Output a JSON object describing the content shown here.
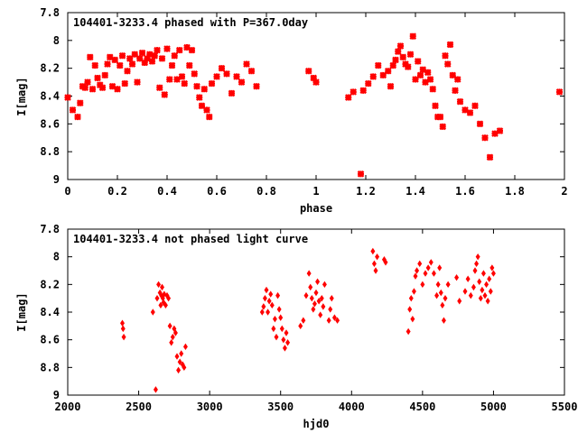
{
  "chart_data": [
    {
      "type": "scatter",
      "title": "104401-3233.4 phased with P=367.0day",
      "xlabel": "phase",
      "ylabel": "I[mag]",
      "xlim": [
        0,
        2
      ],
      "ylim": [
        9,
        7.8
      ],
      "y_inverted": true,
      "xticks": [
        "0",
        "0.2",
        "0.4",
        "0.6",
        "0.8",
        "1",
        "1.2",
        "1.4",
        "1.6",
        "1.8",
        "2"
      ],
      "xtick_values": [
        0,
        0.2,
        0.4,
        0.6,
        0.8,
        1.0,
        1.2,
        1.4,
        1.6,
        1.8,
        2.0
      ],
      "yticks": [
        "7.8",
        "8",
        "8.2",
        "8.4",
        "8.6",
        "8.8",
        "9"
      ],
      "ytick_values": [
        7.8,
        8.0,
        8.2,
        8.4,
        8.6,
        8.8,
        9.0
      ],
      "marker_color": "#ff0000",
      "marker": "star",
      "series": [
        {
          "x": [
            0.0,
            0.02,
            0.04,
            0.05,
            0.06,
            0.07,
            0.08,
            0.09,
            0.1,
            0.11,
            0.12,
            0.13,
            0.14,
            0.15,
            0.16,
            0.17,
            0.18,
            0.19,
            0.2,
            0.21,
            0.22,
            0.23,
            0.24,
            0.25,
            0.26,
            0.27,
            0.28,
            0.29,
            0.3,
            0.31,
            0.32,
            0.33,
            0.34,
            0.35,
            0.36,
            0.37,
            0.38,
            0.39,
            0.4,
            0.41,
            0.42,
            0.43,
            0.44,
            0.45,
            0.46,
            0.47,
            0.48,
            0.49,
            0.5,
            0.51,
            0.52,
            0.53,
            0.54,
            0.55,
            0.56,
            0.57,
            0.58,
            0.6,
            0.62,
            0.64,
            0.66,
            0.68,
            0.7,
            0.72,
            0.74,
            0.76,
            0.97,
            0.99,
            1.0,
            1.13,
            1.15,
            1.18,
            1.19,
            1.21,
            1.23,
            1.25,
            1.27,
            1.29,
            1.3,
            1.31,
            1.32,
            1.33,
            1.34,
            1.35,
            1.36,
            1.37,
            1.38,
            1.39,
            1.4,
            1.41,
            1.42,
            1.43,
            1.44,
            1.45,
            1.46,
            1.47,
            1.48,
            1.49,
            1.5,
            1.51,
            1.52,
            1.53,
            1.54,
            1.55,
            1.56,
            1.57,
            1.58,
            1.6,
            1.62,
            1.64,
            1.66,
            1.68,
            1.7,
            1.72,
            1.74,
            1.98
          ],
          "y": [
            8.41,
            8.5,
            8.55,
            8.45,
            8.33,
            8.34,
            8.3,
            8.12,
            8.35,
            8.18,
            8.27,
            8.32,
            8.34,
            8.25,
            8.17,
            8.12,
            8.33,
            8.14,
            8.35,
            8.18,
            8.11,
            8.31,
            8.22,
            8.13,
            8.17,
            8.1,
            8.3,
            8.13,
            8.09,
            8.16,
            8.13,
            8.1,
            8.15,
            8.11,
            8.07,
            8.34,
            8.13,
            8.39,
            8.06,
            8.28,
            8.18,
            8.11,
            8.28,
            8.07,
            8.26,
            8.31,
            8.05,
            8.18,
            8.07,
            8.24,
            8.33,
            8.41,
            8.47,
            8.35,
            8.5,
            8.55,
            8.31,
            8.26,
            8.2,
            8.24,
            8.38,
            8.26,
            8.3,
            8.17,
            8.22,
            8.33,
            8.22,
            8.27,
            8.3,
            8.41,
            8.37,
            8.96,
            8.36,
            8.31,
            8.26,
            8.18,
            8.25,
            8.22,
            8.33,
            8.18,
            8.14,
            8.08,
            8.04,
            8.12,
            8.17,
            8.19,
            8.1,
            7.97,
            8.28,
            8.15,
            8.25,
            8.21,
            8.3,
            8.23,
            8.28,
            8.35,
            8.47,
            8.55,
            8.55,
            8.62,
            8.11,
            8.17,
            8.03,
            8.25,
            8.36,
            8.28,
            8.44,
            8.5,
            8.52,
            8.47,
            8.6,
            8.7,
            8.84,
            8.67,
            8.65,
            8.37
          ]
        }
      ]
    },
    {
      "type": "scatter",
      "title": "104401-3233.4 not phased light curve",
      "xlabel": "hjd0",
      "ylabel": "I[mag]",
      "xlim": [
        2000,
        5500
      ],
      "ylim": [
        9,
        7.8
      ],
      "y_inverted": true,
      "xticks": [
        "2000",
        "2500",
        "3000",
        "3500",
        "4000",
        "4500",
        "5000",
        "5500"
      ],
      "xtick_values": [
        2000,
        2500,
        3000,
        3500,
        4000,
        4500,
        5000,
        5500
      ],
      "yticks": [
        "7.8",
        "8",
        "8.2",
        "8.4",
        "8.6",
        "8.8",
        "9"
      ],
      "ytick_values": [
        7.8,
        8.0,
        8.2,
        8.4,
        8.6,
        8.8,
        9.0
      ],
      "marker_color": "#ff0000",
      "marker": "diamond",
      "series": [
        {
          "x": [
            2385,
            2390,
            2395,
            2600,
            2620,
            2630,
            2640,
            2650,
            2655,
            2660,
            2665,
            2670,
            2675,
            2680,
            2690,
            2700,
            2710,
            2720,
            2730,
            2740,
            2750,
            2760,
            2770,
            2780,
            2790,
            2800,
            2810,
            2820,
            2830,
            3370,
            3380,
            3390,
            3400,
            3410,
            3420,
            3430,
            3440,
            3450,
            3460,
            3470,
            3480,
            3490,
            3500,
            3510,
            3520,
            3530,
            3540,
            3550,
            3640,
            3660,
            3680,
            3700,
            3710,
            3720,
            3730,
            3740,
            3750,
            3760,
            3770,
            3780,
            3790,
            3800,
            3810,
            3840,
            3850,
            3860,
            3880,
            3900,
            4150,
            4160,
            4170,
            4180,
            4230,
            4240,
            4400,
            4410,
            4420,
            4430,
            4440,
            4450,
            4460,
            4480,
            4500,
            4520,
            4540,
            4560,
            4580,
            4600,
            4610,
            4620,
            4630,
            4640,
            4650,
            4660,
            4680,
            4740,
            4760,
            4800,
            4820,
            4840,
            4860,
            4870,
            4880,
            4890,
            4900,
            4910,
            4920,
            4930,
            4940,
            4950,
            4960,
            4970,
            4980,
            4990,
            5000
          ],
          "y": [
            8.48,
            8.52,
            8.58,
            8.4,
            8.96,
            8.3,
            8.2,
            8.26,
            8.35,
            8.28,
            8.22,
            8.3,
            8.33,
            8.27,
            8.35,
            8.28,
            8.3,
            8.5,
            8.62,
            8.58,
            8.52,
            8.55,
            8.72,
            8.82,
            8.76,
            8.7,
            8.78,
            8.8,
            8.65,
            8.4,
            8.36,
            8.3,
            8.24,
            8.4,
            8.32,
            8.27,
            8.35,
            8.52,
            8.45,
            8.58,
            8.28,
            8.38,
            8.44,
            8.52,
            8.6,
            8.66,
            8.55,
            8.62,
            8.5,
            8.46,
            8.28,
            8.12,
            8.22,
            8.3,
            8.38,
            8.34,
            8.26,
            8.18,
            8.32,
            8.42,
            8.3,
            8.36,
            8.2,
            8.46,
            8.38,
            8.3,
            8.44,
            8.46,
            7.96,
            8.05,
            8.1,
            8.0,
            8.02,
            8.04,
            8.54,
            8.38,
            8.3,
            8.45,
            8.25,
            8.14,
            8.1,
            8.05,
            8.2,
            8.12,
            8.08,
            8.04,
            8.12,
            8.28,
            8.2,
            8.08,
            8.26,
            8.35,
            8.46,
            8.3,
            8.2,
            8.15,
            8.32,
            8.25,
            8.16,
            8.28,
            8.22,
            8.1,
            8.05,
            8.0,
            8.18,
            8.3,
            8.24,
            8.12,
            8.28,
            8.2,
            8.32,
            8.16,
            8.25,
            8.08,
            8.12
          ]
        }
      ]
    }
  ]
}
